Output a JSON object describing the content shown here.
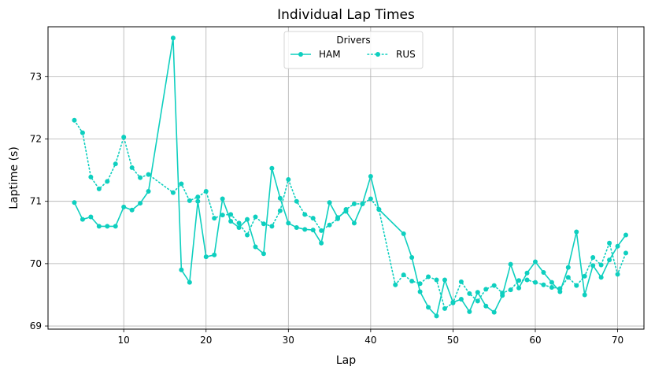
{
  "chart_data": {
    "type": "line",
    "title": "Individual Lap Times",
    "xlabel": "Lap",
    "ylabel": "Laptime (s)",
    "xlim": [
      0.8,
      73.2
    ],
    "ylim": [
      68.95,
      73.8
    ],
    "xticks": [
      10,
      20,
      30,
      40,
      50,
      60,
      70
    ],
    "yticks": [
      69,
      70,
      71,
      72,
      73
    ],
    "grid": true,
    "legend": {
      "title": "Drivers",
      "placement": "top-center"
    },
    "colors": {
      "series": "#0ecfbf",
      "grid": "#b0b0b0",
      "axis": "#000000"
    },
    "series": [
      {
        "name": "HAM",
        "style": "solid",
        "x": [
          4,
          5,
          6,
          7,
          8,
          9,
          10,
          11,
          12,
          13,
          16,
          17,
          18,
          19,
          20,
          21,
          22,
          23,
          24,
          25,
          26,
          27,
          28,
          29,
          30,
          31,
          32,
          33,
          34,
          35,
          36,
          37,
          38,
          39,
          40,
          41,
          44,
          45,
          46,
          47,
          48,
          49,
          50,
          51,
          52,
          53,
          54,
          55,
          56,
          57,
          58,
          59,
          60,
          61,
          62,
          63,
          64,
          65,
          66,
          67,
          68,
          69,
          70,
          71
        ],
        "y": [
          70.98,
          70.71,
          70.75,
          70.6,
          70.6,
          70.6,
          70.91,
          70.86,
          70.97,
          71.16,
          73.62,
          69.9,
          69.7,
          71.0,
          70.11,
          70.14,
          71.04,
          70.68,
          70.58,
          70.71,
          70.27,
          70.16,
          71.53,
          71.05,
          70.65,
          70.58,
          70.55,
          70.54,
          70.33,
          70.98,
          70.74,
          70.84,
          70.65,
          70.96,
          71.4,
          70.87,
          70.48,
          70.1,
          69.55,
          69.3,
          69.16,
          69.74,
          69.38,
          69.43,
          69.23,
          69.54,
          69.32,
          69.22,
          69.49,
          69.99,
          69.61,
          69.85,
          70.03,
          69.86,
          69.7,
          69.55,
          69.94,
          70.51,
          69.5,
          69.97,
          69.78,
          70.06,
          70.28,
          70.46
        ]
      },
      {
        "name": "RUS",
        "style": "dotted",
        "x": [
          4,
          5,
          6,
          7,
          8,
          9,
          10,
          11,
          12,
          13,
          16,
          17,
          18,
          19,
          20,
          21,
          22,
          23,
          24,
          25,
          26,
          27,
          28,
          29,
          30,
          31,
          32,
          33,
          34,
          35,
          36,
          37,
          38,
          39,
          40,
          41,
          43,
          44,
          45,
          46,
          47,
          48,
          49,
          50,
          51,
          52,
          53,
          54,
          55,
          56,
          57,
          58,
          59,
          60,
          61,
          62,
          63,
          64,
          65,
          66,
          67,
          68,
          69,
          70,
          71
        ],
        "y": [
          72.3,
          72.1,
          71.39,
          71.2,
          71.32,
          71.6,
          72.03,
          71.54,
          71.38,
          71.43,
          71.14,
          71.28,
          71.01,
          71.07,
          71.16,
          70.73,
          70.78,
          70.79,
          70.65,
          70.46,
          70.75,
          70.64,
          70.6,
          70.85,
          71.35,
          71.0,
          70.79,
          70.73,
          70.53,
          70.62,
          70.72,
          70.87,
          70.96,
          70.96,
          71.04,
          70.87,
          69.66,
          69.82,
          69.72,
          69.68,
          69.79,
          69.74,
          69.28,
          69.37,
          69.71,
          69.52,
          69.4,
          69.59,
          69.65,
          69.53,
          69.58,
          69.73,
          69.74,
          69.7,
          69.66,
          69.62,
          69.6,
          69.78,
          69.65,
          69.8,
          70.1,
          69.98,
          70.33,
          69.83,
          70.17
        ]
      }
    ]
  }
}
